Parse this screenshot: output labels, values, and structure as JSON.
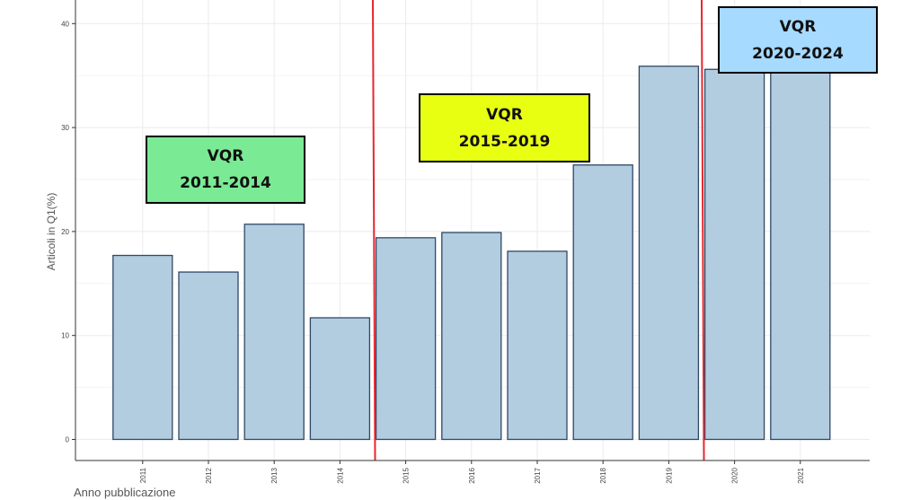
{
  "chart_data": {
    "type": "bar",
    "categories": [
      "2011",
      "2012",
      "2013",
      "2014",
      "2015",
      "2016",
      "2017",
      "2018",
      "2019",
      "2020",
      "2021"
    ],
    "values": [
      17.7,
      16.1,
      20.7,
      11.7,
      19.4,
      19.9,
      18.1,
      26.4,
      35.9,
      35.6,
      36.0
    ],
    "xlabel": "Anno pubblicazione",
    "ylabel": "Articoli in Q1(%)",
    "ylim": [
      0,
      42
    ],
    "yticks": [
      0,
      10,
      20,
      30,
      40
    ],
    "grid": true,
    "bar_fill": "#b3cde0",
    "bar_stroke": "#2f4866",
    "divider_color": "#e8262d",
    "dividers_after_category": [
      "2014",
      "2019"
    ]
  },
  "annotations": [
    {
      "title": "VQR",
      "period": "2011-2014",
      "color": "#7bea95"
    },
    {
      "title": "VQR",
      "period": "2015-2019",
      "color": "#e9ff12"
    },
    {
      "title": "VQR",
      "period": "2020-2024",
      "color": "#a6daff"
    }
  ]
}
